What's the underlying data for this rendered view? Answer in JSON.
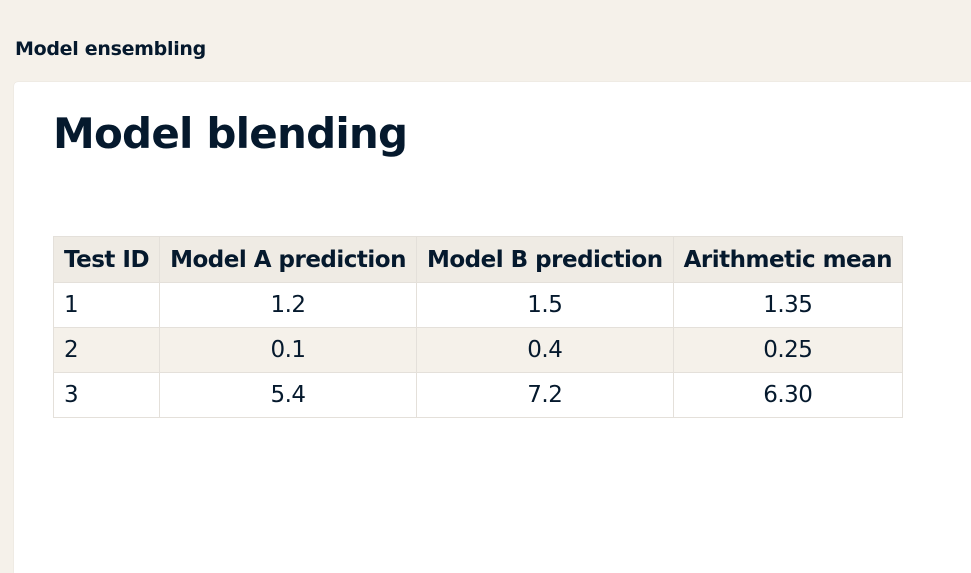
{
  "header": {
    "course_title": "Model ensembling"
  },
  "slide": {
    "title": "Model blending",
    "table": {
      "columns": [
        "Test ID",
        "Model A prediction",
        "Model B prediction",
        "Arithmetic mean"
      ],
      "rows": [
        [
          "1",
          "1.2",
          "1.5",
          "1.35"
        ],
        [
          "2",
          "0.1",
          "0.4",
          "0.25"
        ],
        [
          "3",
          "5.4",
          "7.2",
          "6.30"
        ]
      ]
    }
  },
  "colors": {
    "background": "#f5f1ea",
    "text": "#05192d",
    "header_row": "#efebe4",
    "card": "#ffffff"
  }
}
